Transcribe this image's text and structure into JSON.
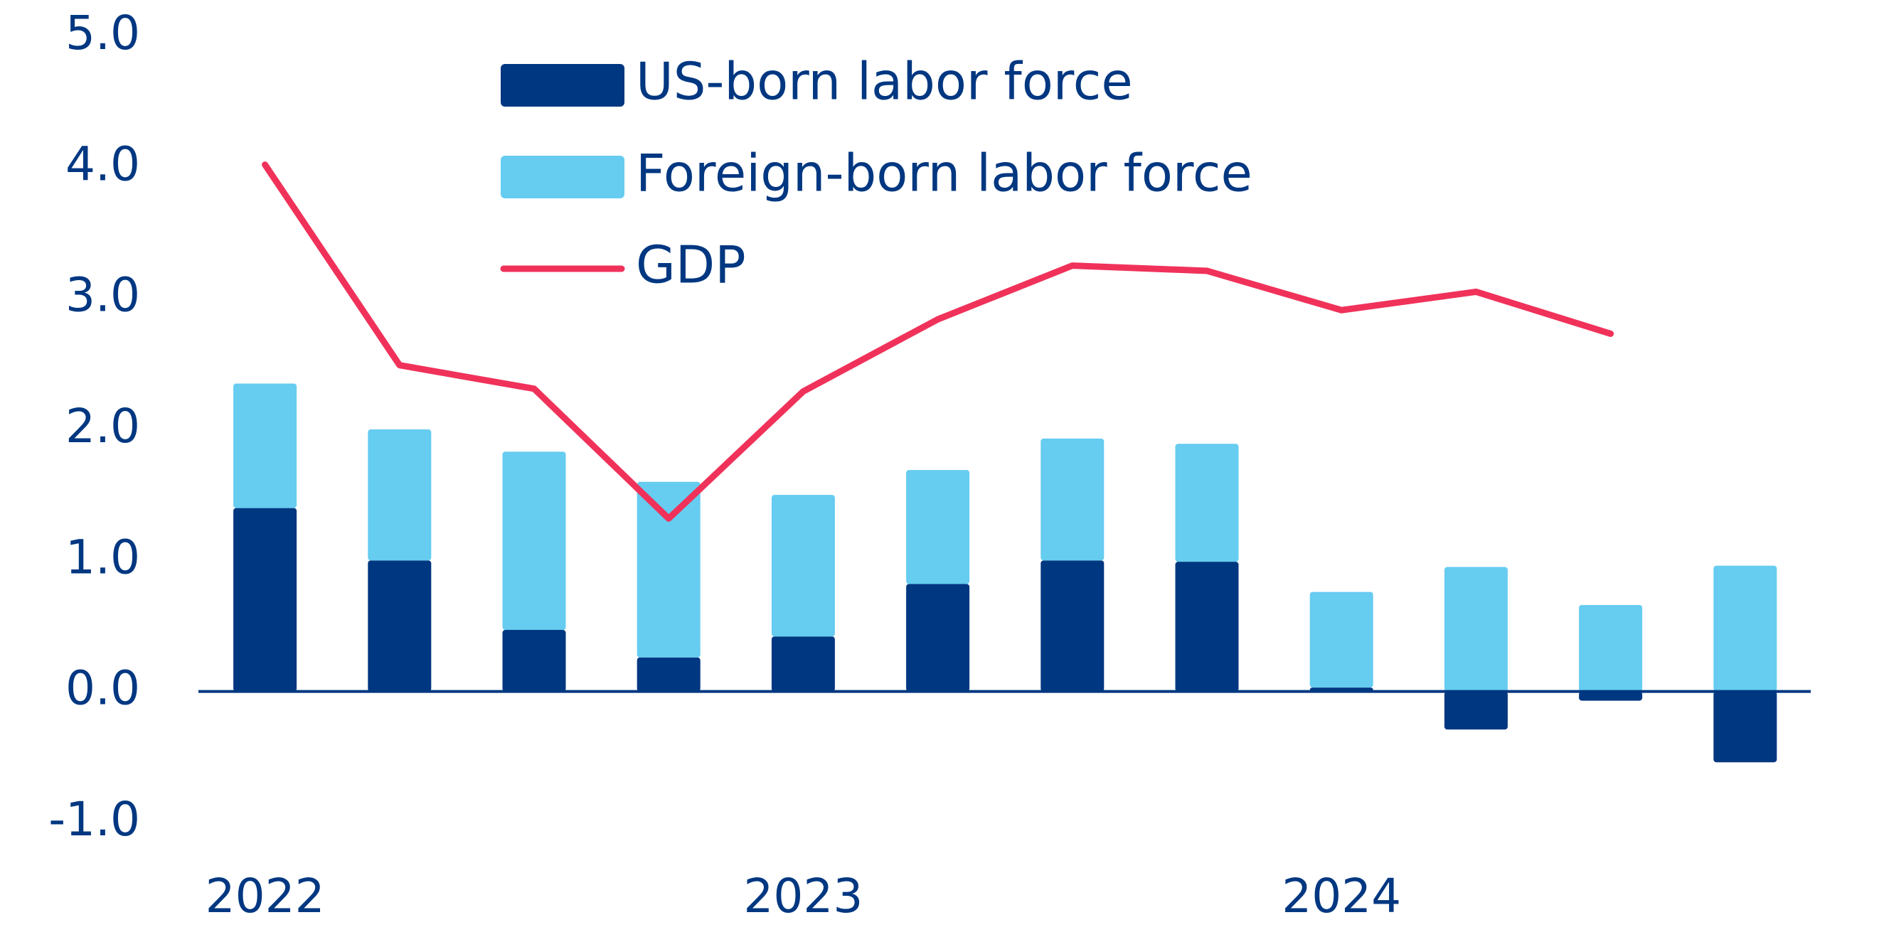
{
  "chart_data": {
    "type": "bar",
    "stacked": true,
    "categories": [
      "2022",
      null,
      null,
      null,
      "2023",
      null,
      null,
      null,
      "2024",
      null,
      null,
      null
    ],
    "series": [
      {
        "name": "US-born labor force",
        "type": "bar",
        "color": "#003781",
        "values": [
          1.4,
          1.0,
          0.47,
          0.26,
          0.42,
          0.82,
          1.0,
          0.99,
          0.03,
          -0.29,
          -0.07,
          -0.54
        ]
      },
      {
        "name": "Foreign-born labor force",
        "type": "bar",
        "color": "#66ccf0",
        "values": [
          0.95,
          1.0,
          1.36,
          1.34,
          1.08,
          0.87,
          0.93,
          0.9,
          0.73,
          0.95,
          0.66,
          0.96
        ]
      },
      {
        "name": "GDP",
        "type": "line",
        "color": "#f0325a",
        "values": [
          4.02,
          2.49,
          2.31,
          1.32,
          2.29,
          2.84,
          3.25,
          3.21,
          2.91,
          3.05,
          2.73,
          null
        ]
      }
    ],
    "ylim": [
      -1.0,
      5.0
    ],
    "yticks": [
      {
        "value": -1,
        "label": "-1.0"
      },
      {
        "value": 0,
        "label": "0.0"
      },
      {
        "value": 1,
        "label": "1.0"
      },
      {
        "value": 2,
        "label": "2.0"
      },
      {
        "value": 3,
        "label": "3.0"
      },
      {
        "value": 4,
        "label": "4.0"
      },
      {
        "value": 5,
        "label": "5.0"
      }
    ],
    "grid": false
  }
}
